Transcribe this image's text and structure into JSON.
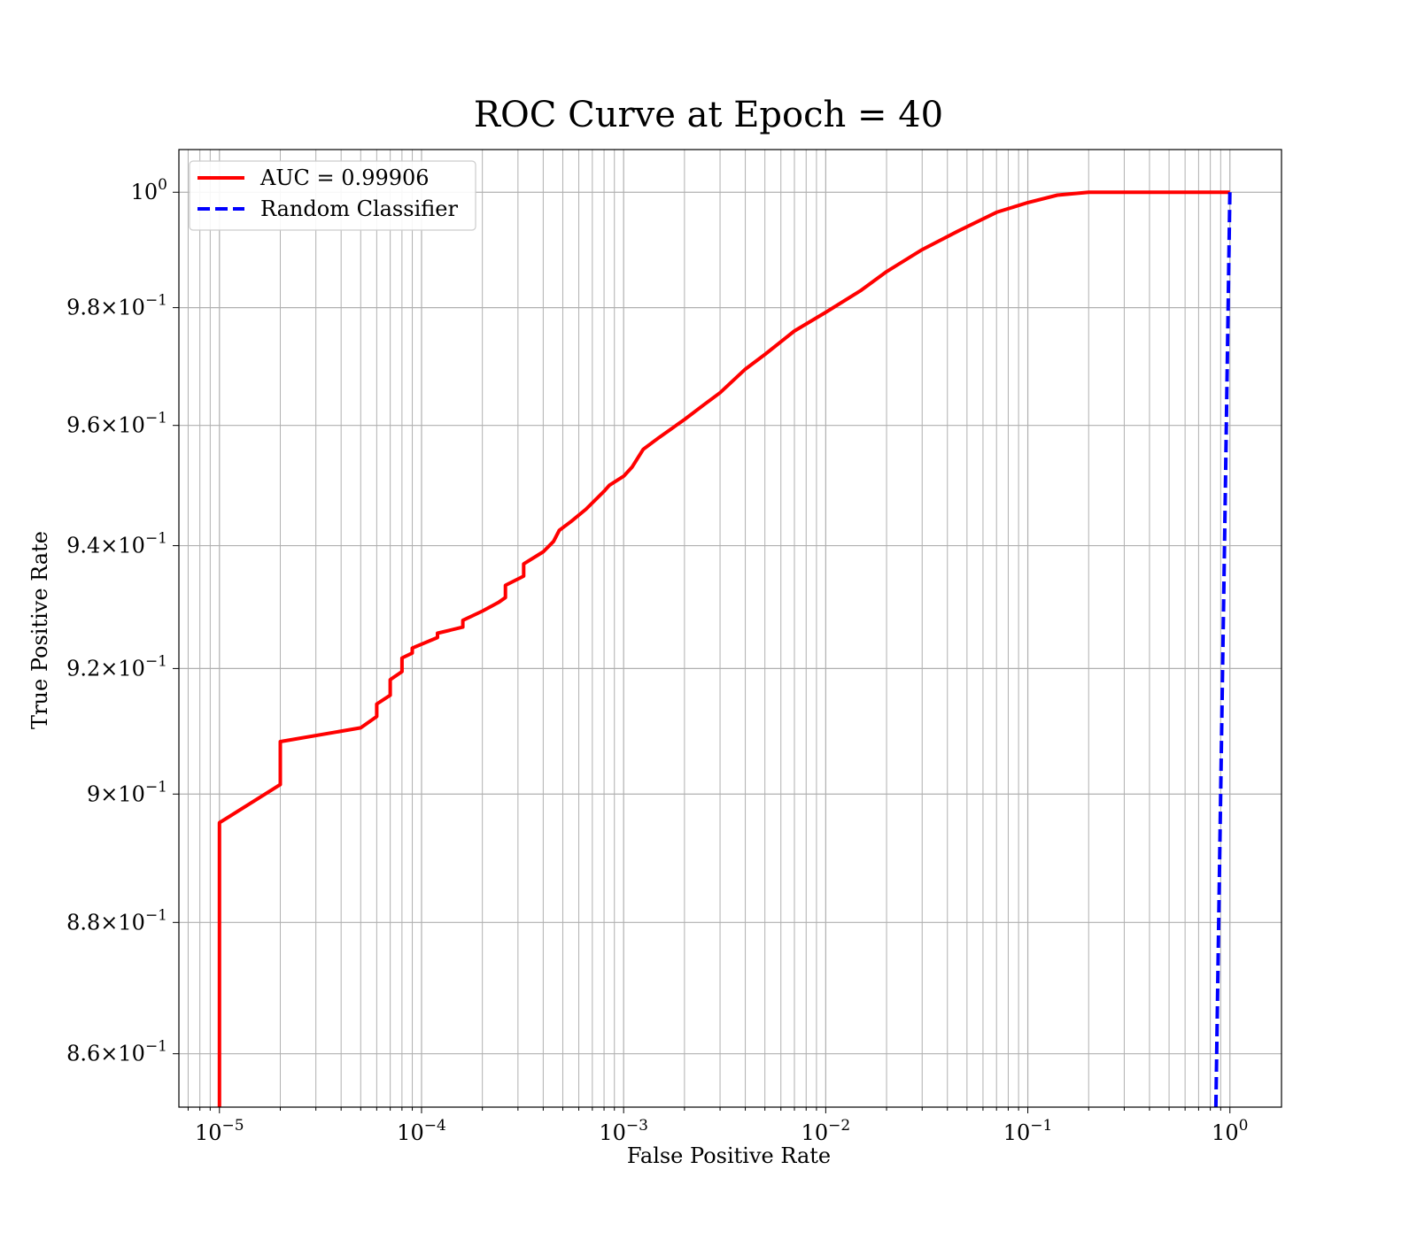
{
  "chart_data": {
    "type": "line",
    "title": "ROC Curve at Epoch = 40",
    "xlabel": "False Positive Rate",
    "ylabel": "True Positive Rate",
    "xscale": "log",
    "yscale": "log",
    "xlim": [
      6.3e-06,
      1.8
    ],
    "ylim": [
      0.852,
      1.0075
    ],
    "grid": "both",
    "legend_position": "upper left",
    "x_ticks": [
      {
        "base": "10",
        "exp": "−5",
        "value": 1e-05
      },
      {
        "base": "10",
        "exp": "−4",
        "value": 0.0001
      },
      {
        "base": "10",
        "exp": "−3",
        "value": 0.001
      },
      {
        "base": "10",
        "exp": "−2",
        "value": 0.01
      },
      {
        "base": "10",
        "exp": "−1",
        "value": 0.1
      },
      {
        "base": "10",
        "exp": "0",
        "value": 1
      }
    ],
    "y_ticks": [
      {
        "base": "10",
        "mant": "",
        "exp": "0",
        "value": 1.0
      },
      {
        "base": "10",
        "mant": "9.8×",
        "exp": "−1",
        "value": 0.98
      },
      {
        "base": "10",
        "mant": "9.6×",
        "exp": "−1",
        "value": 0.96
      },
      {
        "base": "10",
        "mant": "9.4×",
        "exp": "−1",
        "value": 0.94
      },
      {
        "base": "10",
        "mant": "9.2×",
        "exp": "−1",
        "value": 0.92
      },
      {
        "base": "10",
        "mant": "9×",
        "exp": "−1",
        "value": 0.9
      },
      {
        "base": "10",
        "mant": "8.8×",
        "exp": "−1",
        "value": 0.88
      },
      {
        "base": "10",
        "mant": "8.6×",
        "exp": "−1",
        "value": 0.86
      }
    ],
    "series": [
      {
        "name": "AUC = 0.99906",
        "color": "#ff0000",
        "style": "solid",
        "points": [
          [
            1e-05,
            0.852
          ],
          [
            1e-05,
            0.8955
          ],
          [
            2e-05,
            0.9015
          ],
          [
            2e-05,
            0.9083
          ],
          [
            5e-05,
            0.9105
          ],
          [
            6e-05,
            0.9123
          ],
          [
            6e-05,
            0.9143
          ],
          [
            7e-05,
            0.9157
          ],
          [
            7e-05,
            0.9182
          ],
          [
            8e-05,
            0.9195
          ],
          [
            8e-05,
            0.9217
          ],
          [
            9e-05,
            0.9225
          ],
          [
            9e-05,
            0.9233
          ],
          [
            0.00012,
            0.925
          ],
          [
            0.00012,
            0.9257
          ],
          [
            0.00016,
            0.9267
          ],
          [
            0.00016,
            0.9278
          ],
          [
            0.0002,
            0.9293
          ],
          [
            0.00024,
            0.9307
          ],
          [
            0.00026,
            0.9315
          ],
          [
            0.00026,
            0.9335
          ],
          [
            0.00032,
            0.935
          ],
          [
            0.00032,
            0.937
          ],
          [
            0.0004,
            0.939
          ],
          [
            0.00045,
            0.9407
          ],
          [
            0.00048,
            0.9425
          ],
          [
            0.00055,
            0.944
          ],
          [
            0.00065,
            0.946
          ],
          [
            0.0008,
            0.949
          ],
          [
            0.00085,
            0.95
          ],
          [
            0.001,
            0.9515
          ],
          [
            0.0011,
            0.953
          ],
          [
            0.00125,
            0.956
          ],
          [
            0.0015,
            0.958
          ],
          [
            0.002,
            0.961
          ],
          [
            0.0025,
            0.9635
          ],
          [
            0.003,
            0.9655
          ],
          [
            0.004,
            0.9695
          ],
          [
            0.005,
            0.972
          ],
          [
            0.007,
            0.976
          ],
          [
            0.01,
            0.9792
          ],
          [
            0.015,
            0.983
          ],
          [
            0.02,
            0.9862
          ],
          [
            0.03,
            0.99
          ],
          [
            0.045,
            0.9932
          ],
          [
            0.07,
            0.9965
          ],
          [
            0.1,
            0.9982
          ],
          [
            0.14,
            0.9995
          ],
          [
            0.2,
            1.0
          ],
          [
            0.5,
            1.0
          ],
          [
            1.0,
            1.0
          ]
        ]
      },
      {
        "name": "Random Classifier",
        "color": "#0000ff",
        "style": "dashed",
        "points": [
          [
            0.852,
            0.852
          ],
          [
            0.9,
            0.9
          ],
          [
            0.95,
            0.95
          ],
          [
            1.0,
            1.0
          ]
        ]
      }
    ]
  }
}
